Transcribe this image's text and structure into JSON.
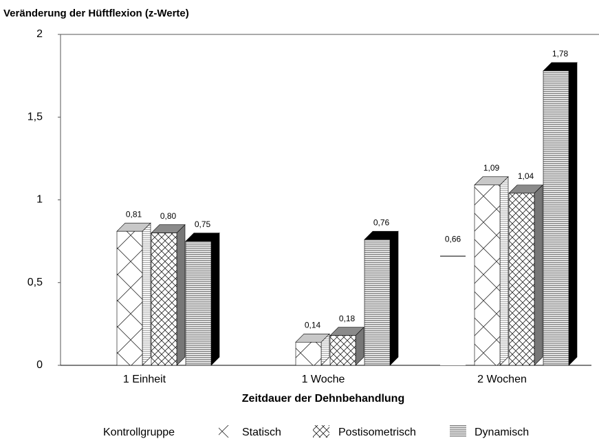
{
  "chart_data": {
    "type": "bar3d",
    "title": "Veränderung der Hüftflexion (z-Werte)",
    "x_label": "Zeitdauer der Dehnbehandlung",
    "categories": [
      "1 Einheit",
      "1 Woche",
      "2 Wochen"
    ],
    "series": [
      {
        "name": "Kontrollgruppe",
        "color": "#ffffff",
        "values": [
          null,
          null,
          0.66
        ],
        "value_labels": [
          null,
          null,
          "0,66"
        ]
      },
      {
        "name": "Statisch",
        "color": "#c8c8c8",
        "values": [
          0.81,
          0.14,
          1.09
        ],
        "value_labels": [
          "0,81",
          "0,14",
          "1,09"
        ]
      },
      {
        "name": "Postisometrisch",
        "color": "#8a8a8a",
        "values": [
          0.8,
          0.18,
          1.04
        ],
        "value_labels": [
          "0,80",
          "0,18",
          "1,04"
        ]
      },
      {
        "name": "Dynamisch",
        "color": "#000000",
        "values": [
          0.75,
          0.76,
          1.78
        ],
        "value_labels": [
          "0,75",
          "0,76",
          "1,78"
        ]
      }
    ],
    "ylim": [
      0,
      2
    ],
    "yticks": [
      0,
      {
        "value": 0.5,
        "label": "0,5"
      },
      1,
      {
        "value": 1.5,
        "label": "1,5"
      },
      2
    ],
    "grid": false,
    "legend": "bottom"
  }
}
